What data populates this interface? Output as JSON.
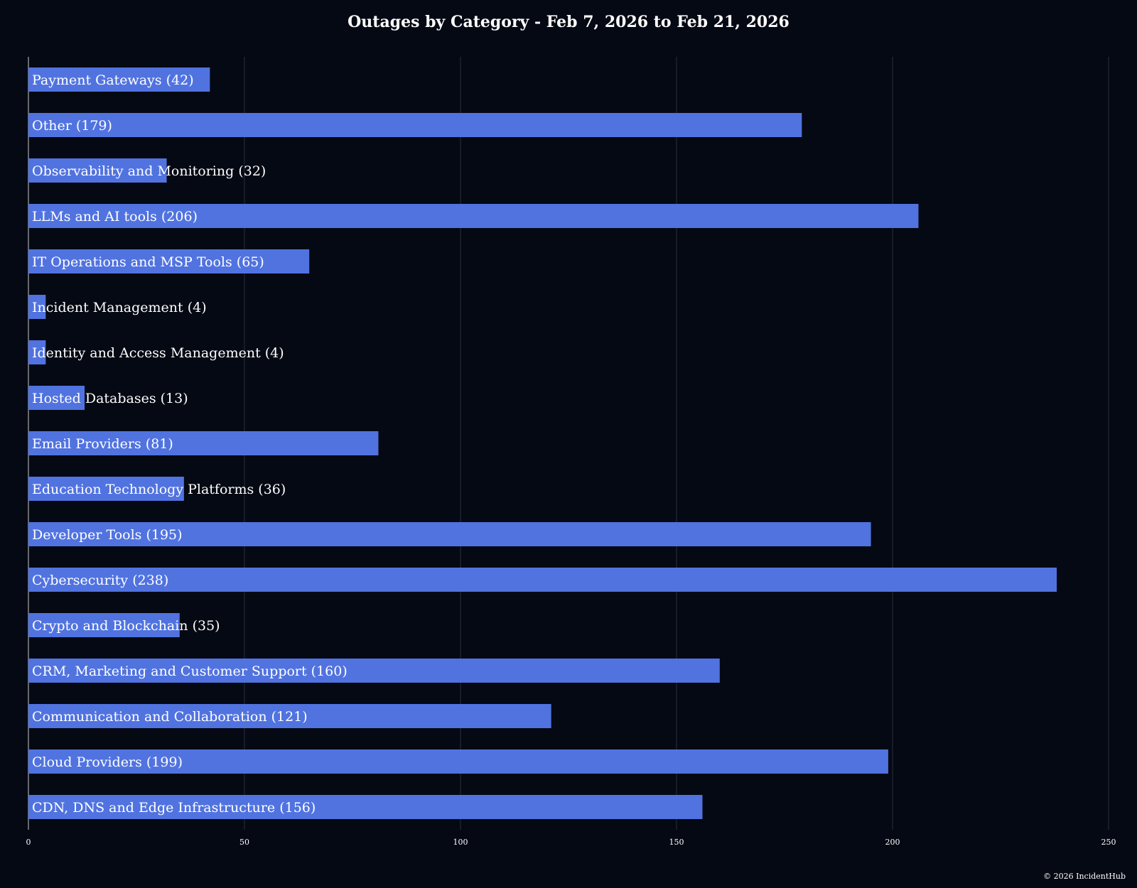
{
  "chart_data": {
    "type": "bar",
    "orientation": "horizontal",
    "title": "Outages by Category - Feb 7, 2026 to Feb 21, 2026",
    "xlabel": "",
    "ylabel": "",
    "xlim": [
      0,
      250
    ],
    "xticks": [
      0,
      50,
      100,
      150,
      200,
      250
    ],
    "grid": true,
    "categories": [
      "Payment Gateways",
      "Other",
      "Observability and Monitoring",
      "LLMs and AI tools",
      "IT Operations and MSP Tools",
      "Incident Management",
      "Identity and Access Management",
      "Hosted Databases",
      "Email Providers",
      "Education Technology Platforms",
      "Developer Tools",
      "Cybersecurity",
      "Crypto and Blockchain",
      "CRM, Marketing and Customer Support",
      "Communication and Collaboration",
      "Cloud Providers",
      "CDN, DNS and Edge Infrastructure"
    ],
    "values": [
      42,
      179,
      32,
      206,
      65,
      4,
      4,
      13,
      81,
      36,
      195,
      238,
      35,
      160,
      121,
      199,
      156
    ],
    "bar_color": "#5173e0"
  },
  "footer": {
    "copyright": "© 2026 IncidentHub"
  },
  "colors": {
    "background": "#050913",
    "grid": "#2a2f3d",
    "axis": "#c8c8c8",
    "text": "#ffffff"
  }
}
